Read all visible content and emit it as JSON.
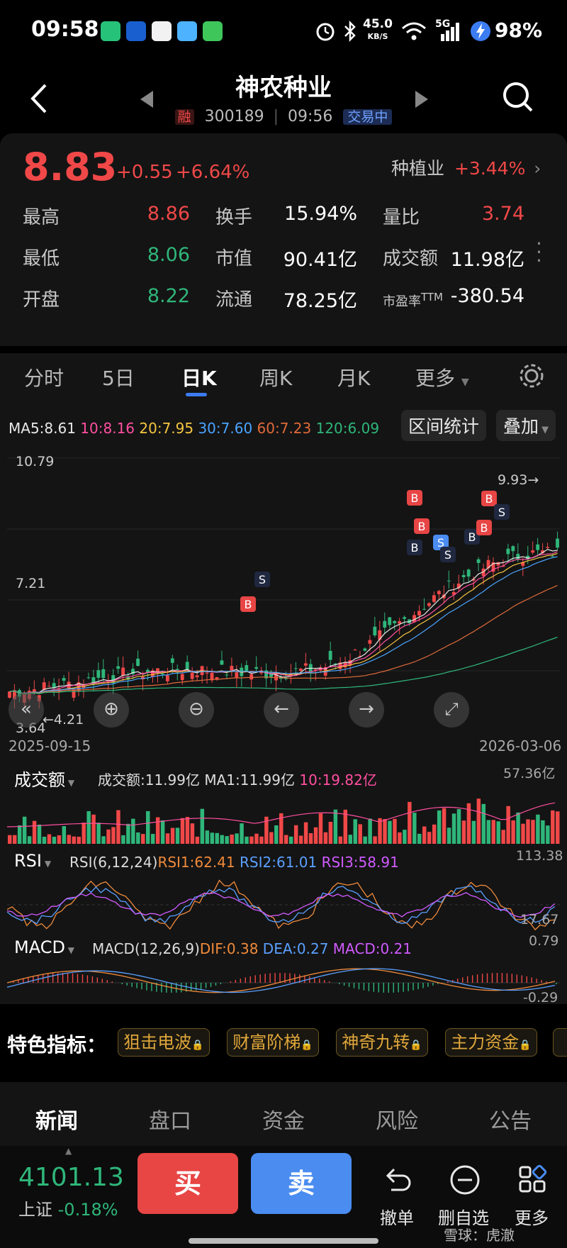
{
  "status": {
    "time": "09:58",
    "net_speed_top": "45.0",
    "net_speed_bottom": "KB/S",
    "signal": "5G",
    "battery": "98%"
  },
  "header": {
    "title": "神农种业",
    "margin_badge": "融",
    "code": "300189",
    "time": "09:56",
    "state": "交易中"
  },
  "quote": {
    "price": "8.83",
    "change": "+0.55",
    "change_pct": "+6.64%",
    "industry": "种植业",
    "industry_pct": "+3.44%",
    "rows": [
      {
        "l1": "最高",
        "v1": "8.86",
        "l2": "换手",
        "v2": "15.94%",
        "l3": "量比",
        "v3": "3.74"
      },
      {
        "l1": "最低",
        "v1": "8.06",
        "l2": "市值",
        "v2": "90.41亿",
        "l3": "成交额",
        "v3": "11.98亿"
      },
      {
        "l1": "开盘",
        "v1": "8.22",
        "l2": "流通",
        "v2": "78.25亿",
        "l3": "市盈率",
        "l3_sup": "TTM",
        "v3": "-380.54"
      }
    ]
  },
  "tabs": [
    "分时",
    "5日",
    "日K",
    "周K",
    "月K",
    "更多"
  ],
  "chart": {
    "ma": [
      {
        "label": "MA5:8.61",
        "color": "#e8e8e8"
      },
      {
        "label": "10:8.16",
        "color": "#ff4fa0"
      },
      {
        "label": "20:7.95",
        "color": "#f5c542"
      },
      {
        "label": "30:7.60",
        "color": "#4aa3ff"
      },
      {
        "label": "60:7.23",
        "color": "#e06a3a"
      },
      {
        "label": "120:6.09",
        "color": "#2fb67a"
      }
    ],
    "interval_btn": "区间统计",
    "overlay_btn": "叠加",
    "y_max": "10.79",
    "y_mid": "7.21",
    "y_min": "3.64",
    "low_marker": "4.21",
    "high_marker": "9.93",
    "date_start": "2025-09-15",
    "date_end": "2026-03-06"
  },
  "volume": {
    "title": "成交额",
    "info": "成交额:11.99亿 MA1:11.99亿",
    "ma10": "10:19.82亿",
    "max": "57.36亿"
  },
  "rsi": {
    "title": "RSI",
    "params": "RSI(6,12,24)",
    "rsi1": "RSI1:62.41",
    "rsi2": "RSI2:61.01",
    "rsi3": "RSI3:58.91",
    "max": "113.38",
    "min": "17.67"
  },
  "macd": {
    "title": "MACD",
    "params": "MACD(12,26,9)",
    "dif": "DIF:0.38",
    "dea": "DEA:0.27",
    "macd": "MACD:0.21",
    "max": "0.79",
    "min": "-0.29"
  },
  "features": {
    "label": "特色指标：",
    "items": [
      "狙击电波",
      "财富阶梯",
      "神奇九转",
      "主力资金"
    ]
  },
  "bottom_tabs": [
    "新闻",
    "盘口",
    "资金",
    "风险",
    "公告"
  ],
  "footer": {
    "index_value": "4101.13",
    "index_name": "上证",
    "index_pct": "-0.18%",
    "buy": "买",
    "sell": "卖",
    "actions": [
      "撤单",
      "删自选",
      "更多"
    ],
    "watermark": "雪球：虎澈"
  },
  "colors": {
    "up": "#f04848",
    "down": "#2fb67a",
    "buy_bg": "#e84545",
    "sell_bg": "#4a8cf0",
    "bg": "#141414"
  }
}
